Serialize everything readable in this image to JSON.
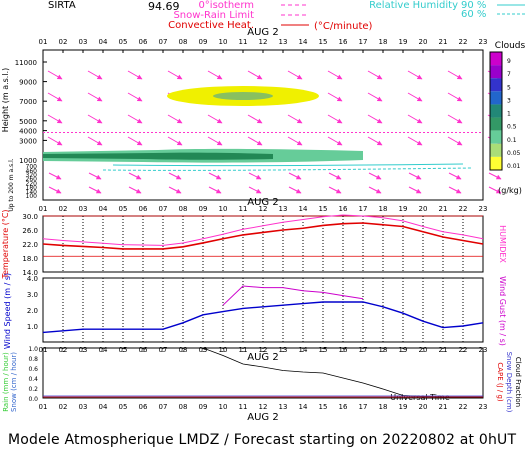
{
  "header": {
    "site": "SIRTA",
    "number": "94.69",
    "legend_left": [
      {
        "label": "0°isotherm",
        "color": "#ff33cc"
      },
      {
        "label": "Snow-Rain Limit",
        "color": "#ff33cc"
      },
      {
        "label": "Convective Heat.",
        "color": "#e00000",
        "unit": "(°C/minute)"
      }
    ],
    "legend_right": {
      "label": "Relative Humidity",
      "v1": "90 %",
      "v2": "60 %",
      "color": "#33cccc"
    }
  },
  "hours": [
    "01",
    "02",
    "03",
    "04",
    "05",
    "06",
    "07",
    "08",
    "09",
    "10",
    "11",
    "12",
    "13",
    "14",
    "15",
    "16",
    "17",
    "18",
    "19",
    "20",
    "21",
    "22",
    "23"
  ],
  "date_label": "AUG  2",
  "xlabel": "Universal Time",
  "footer": "Modele Atmospherique LMDZ / Forecast starting on 20220802 at 0hUT",
  "colors": {
    "temp": "#e00000",
    "humidex": "#ff33cc",
    "wind": "#0000cc",
    "gust": "#cc00cc",
    "cloud_prob": "#000000",
    "wind_arrow": "#ff33cc"
  },
  "chart_data": [
    {
      "type": "heatmap",
      "title": "Clouds",
      "ylabel": "Height  (m a.s.l.)",
      "ylabel2": "Up to 200 m a.s.l.",
      "yticks_upper": [
        1000,
        3000,
        4000,
        5000,
        7000,
        9000,
        11000
      ],
      "yticks_lower": [
        100,
        140,
        180,
        220,
        260,
        320,
        460,
        700
      ],
      "colorbar_label": "(g/kg)",
      "colorbar_ticks": [
        "9",
        "7",
        "5",
        "3",
        "1",
        "0.5",
        "0.1",
        "0.05",
        "0.01"
      ],
      "freezing_level_m": 3800
    },
    {
      "type": "line",
      "ylabel": "Temperature (°C)",
      "ylabel2": "HUMIDEX",
      "yticks": [
        14.0,
        18.0,
        22.0,
        26.0,
        30.0
      ],
      "ylim": [
        14,
        30
      ],
      "series": [
        {
          "name": "Temperature",
          "values": [
            22.0,
            21.6,
            21.3,
            21.0,
            20.6,
            20.6,
            20.6,
            21.2,
            22.3,
            23.5,
            24.6,
            25.3,
            26.0,
            26.5,
            27.3,
            27.8,
            28.0,
            27.5,
            27.0,
            25.5,
            24.0,
            23.0,
            22.0
          ]
        },
        {
          "name": "HUMIDEX",
          "values": [
            23.5,
            23.0,
            22.6,
            22.2,
            21.8,
            21.7,
            21.6,
            22.3,
            23.5,
            24.8,
            26.2,
            27.2,
            28.2,
            29.0,
            29.8,
            30.3,
            30.0,
            29.5,
            28.6,
            27.0,
            25.5,
            24.6,
            23.5
          ]
        }
      ]
    },
    {
      "type": "line",
      "ylabel": "Wind Speed (m / s)",
      "ylabel2": "Wind Gust (m / s)",
      "yticks": [
        1.0,
        2.0,
        3.0,
        4.0
      ],
      "ylim": [
        0.0,
        4.0
      ],
      "series": [
        {
          "name": "Wind Speed",
          "values": [
            0.6,
            0.7,
            0.8,
            0.8,
            0.8,
            0.8,
            0.8,
            1.2,
            1.7,
            1.9,
            2.1,
            2.2,
            2.3,
            2.4,
            2.5,
            2.5,
            2.5,
            2.2,
            1.8,
            1.3,
            0.9,
            1.0,
            1.2
          ]
        },
        {
          "name": "Wind Gust",
          "values": [
            null,
            null,
            null,
            null,
            null,
            null,
            null,
            null,
            null,
            2.3,
            3.5,
            3.4,
            3.4,
            3.2,
            3.1,
            2.9,
            2.7,
            null,
            null,
            null,
            null,
            null,
            null
          ]
        }
      ]
    },
    {
      "type": "line",
      "ylabel": "Rain (mm / hour)",
      "ylabel_snow": "Snow (cm / hour)",
      "ylabel2": "CAPE (J / g)",
      "ylabel3": "Snow Depth (cm)",
      "ylabel4": "Cloud Fraction",
      "yticks": [
        0.0,
        0.2,
        0.4,
        0.6,
        0.8,
        1.0
      ],
      "ylim": [
        0.0,
        1.0
      ],
      "series": [
        {
          "name": "Cloud Fraction",
          "values": [
            null,
            null,
            null,
            null,
            null,
            null,
            null,
            null,
            1.0,
            0.85,
            0.68,
            0.62,
            0.55,
            0.52,
            0.5,
            0.4,
            0.3,
            0.18,
            0.05,
            0.03,
            0.02,
            0.02,
            0.02
          ]
        }
      ]
    }
  ]
}
